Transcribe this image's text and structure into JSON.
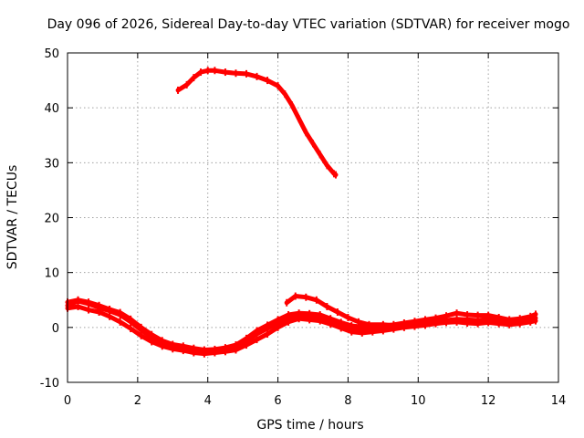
{
  "chart_data": {
    "type": "line",
    "title": "Day 096 of 2026, Sidereal Day-to-day VTEC variation (SDTVAR) for receiver mogo",
    "xlabel": "GPS time / hours",
    "ylabel": "SDTVAR / TECUs",
    "xlim": [
      0,
      14
    ],
    "ylim": [
      -10,
      50
    ],
    "x_ticks": [
      "0",
      "2",
      "4",
      "6",
      "8",
      "10",
      "12",
      "14"
    ],
    "y_ticks": [
      "-10",
      "0",
      "10",
      "20",
      "30",
      "40",
      "50"
    ],
    "grid": true,
    "series": [
      {
        "name": "arc-high",
        "color": "#ff0000",
        "points": [
          [
            3.15,
            43.2
          ],
          [
            3.4,
            44.2
          ],
          [
            3.6,
            45.5
          ],
          [
            3.8,
            46.5
          ],
          [
            4.0,
            46.8
          ],
          [
            4.2,
            46.8
          ],
          [
            4.5,
            46.5
          ],
          [
            4.8,
            46.3
          ],
          [
            5.1,
            46.2
          ],
          [
            5.4,
            45.7
          ],
          [
            5.7,
            45.0
          ],
          [
            6.0,
            44.0
          ],
          [
            6.2,
            42.5
          ],
          [
            6.4,
            40.5
          ],
          [
            6.6,
            38.0
          ],
          [
            6.8,
            35.5
          ],
          [
            7.0,
            33.5
          ],
          [
            7.2,
            31.5
          ],
          [
            7.4,
            29.5
          ],
          [
            7.6,
            28.0
          ],
          [
            7.65,
            27.8
          ]
        ]
      },
      {
        "name": "arc-mid",
        "color": "#ff0000",
        "points": [
          [
            6.25,
            4.5
          ],
          [
            6.5,
            5.7
          ],
          [
            6.8,
            5.5
          ],
          [
            7.1,
            5.0
          ],
          [
            7.4,
            3.8
          ],
          [
            7.7,
            2.8
          ],
          [
            8.0,
            1.8
          ],
          [
            8.3,
            1.0
          ],
          [
            8.6,
            0.5
          ],
          [
            9.0,
            0.5
          ],
          [
            9.4,
            0.3
          ]
        ]
      },
      {
        "name": "low-a",
        "color": "#ff0000",
        "points": [
          [
            0.0,
            4.0
          ],
          [
            0.3,
            4.8
          ],
          [
            0.6,
            4.3
          ],
          [
            0.9,
            3.6
          ],
          [
            1.2,
            3.0
          ],
          [
            1.5,
            2.3
          ],
          [
            1.8,
            1.0
          ],
          [
            2.1,
            -0.5
          ],
          [
            2.4,
            -1.8
          ],
          [
            2.7,
            -2.9
          ],
          [
            3.0,
            -3.6
          ],
          [
            3.3,
            -3.8
          ],
          [
            3.6,
            -4.2
          ],
          [
            3.9,
            -4.5
          ],
          [
            4.2,
            -4.3
          ],
          [
            4.5,
            -4.0
          ],
          [
            4.8,
            -3.6
          ],
          [
            5.1,
            -2.5
          ],
          [
            5.4,
            -1.2
          ],
          [
            5.7,
            -0.2
          ],
          [
            6.0,
            0.8
          ],
          [
            6.3,
            1.8
          ],
          [
            6.6,
            2.2
          ],
          [
            6.9,
            2.0
          ],
          [
            7.2,
            1.8
          ],
          [
            7.5,
            1.2
          ],
          [
            7.8,
            0.5
          ],
          [
            8.1,
            -0.3
          ],
          [
            8.4,
            -0.5
          ],
          [
            8.7,
            -0.3
          ],
          [
            9.0,
            -0.2
          ],
          [
            9.3,
            0.0
          ],
          [
            9.6,
            0.3
          ],
          [
            9.9,
            0.6
          ],
          [
            10.2,
            0.8
          ],
          [
            10.5,
            1.0
          ],
          [
            10.8,
            1.3
          ],
          [
            11.1,
            1.5
          ],
          [
            11.4,
            1.4
          ],
          [
            11.7,
            1.3
          ],
          [
            12.0,
            1.5
          ],
          [
            12.3,
            1.2
          ],
          [
            12.6,
            0.9
          ],
          [
            12.9,
            1.1
          ],
          [
            13.2,
            1.5
          ],
          [
            13.35,
            1.7
          ]
        ]
      },
      {
        "name": "low-b",
        "color": "#ff0000",
        "points": [
          [
            0.0,
            3.5
          ],
          [
            0.3,
            3.8
          ],
          [
            0.6,
            3.2
          ],
          [
            0.9,
            2.8
          ],
          [
            1.2,
            2.0
          ],
          [
            1.5,
            1.0
          ],
          [
            1.8,
            -0.2
          ],
          [
            2.1,
            -1.5
          ],
          [
            2.4,
            -2.6
          ],
          [
            2.7,
            -3.4
          ],
          [
            3.0,
            -3.9
          ],
          [
            3.3,
            -4.2
          ],
          [
            3.6,
            -4.6
          ],
          [
            3.9,
            -4.8
          ],
          [
            4.2,
            -4.6
          ],
          [
            4.5,
            -4.4
          ],
          [
            4.8,
            -4.1
          ],
          [
            5.1,
            -3.2
          ],
          [
            5.4,
            -2.2
          ],
          [
            5.7,
            -1.2
          ],
          [
            6.0,
            0.0
          ],
          [
            6.3,
            1.0
          ],
          [
            6.6,
            1.6
          ],
          [
            6.9,
            1.4
          ],
          [
            7.2,
            1.2
          ],
          [
            7.5,
            0.6
          ],
          [
            7.8,
            -0.1
          ],
          [
            8.1,
            -0.8
          ],
          [
            8.4,
            -1.0
          ],
          [
            8.7,
            -0.8
          ],
          [
            9.0,
            -0.6
          ],
          [
            9.3,
            -0.3
          ],
          [
            9.6,
            0.0
          ],
          [
            9.9,
            0.2
          ],
          [
            10.2,
            0.4
          ],
          [
            10.5,
            0.7
          ],
          [
            10.8,
            0.9
          ],
          [
            11.1,
            1.0
          ],
          [
            11.4,
            0.8
          ],
          [
            11.7,
            0.7
          ],
          [
            12.0,
            0.9
          ],
          [
            12.3,
            0.7
          ],
          [
            12.6,
            0.5
          ],
          [
            12.9,
            0.7
          ],
          [
            13.2,
            1.0
          ],
          [
            13.35,
            1.2
          ]
        ]
      },
      {
        "name": "low-c",
        "color": "#ff0000",
        "points": [
          [
            0.0,
            4.6
          ],
          [
            0.3,
            5.0
          ],
          [
            0.6,
            4.6
          ],
          [
            0.9,
            4.0
          ],
          [
            1.2,
            3.3
          ],
          [
            1.5,
            2.7
          ],
          [
            1.8,
            1.5
          ],
          [
            2.1,
            0.0
          ],
          [
            2.4,
            -1.3
          ],
          [
            2.7,
            -2.4
          ],
          [
            3.0,
            -3.1
          ],
          [
            3.3,
            -3.4
          ],
          [
            3.6,
            -3.8
          ],
          [
            3.9,
            -4.1
          ],
          [
            4.2,
            -4.0
          ],
          [
            4.5,
            -3.7
          ],
          [
            4.8,
            -3.2
          ],
          [
            5.1,
            -2.0
          ],
          [
            5.4,
            -0.6
          ],
          [
            5.7,
            0.4
          ],
          [
            6.0,
            1.4
          ],
          [
            6.3,
            2.3
          ],
          [
            6.6,
            2.6
          ],
          [
            6.9,
            2.5
          ],
          [
            7.2,
            2.3
          ],
          [
            7.5,
            1.6
          ],
          [
            7.8,
            0.9
          ],
          [
            8.1,
            0.3
          ],
          [
            8.4,
            0.1
          ],
          [
            8.7,
            0.2
          ],
          [
            9.0,
            0.3
          ],
          [
            9.3,
            0.5
          ],
          [
            9.6,
            0.8
          ],
          [
            9.9,
            1.1
          ],
          [
            10.2,
            1.4
          ],
          [
            10.5,
            1.7
          ],
          [
            10.8,
            2.1
          ],
          [
            11.1,
            2.6
          ],
          [
            11.4,
            2.3
          ],
          [
            11.7,
            2.2
          ],
          [
            12.0,
            2.2
          ],
          [
            12.3,
            1.8
          ],
          [
            12.6,
            1.4
          ],
          [
            12.9,
            1.6
          ],
          [
            13.2,
            2.0
          ],
          [
            13.35,
            2.4
          ]
        ]
      }
    ]
  }
}
